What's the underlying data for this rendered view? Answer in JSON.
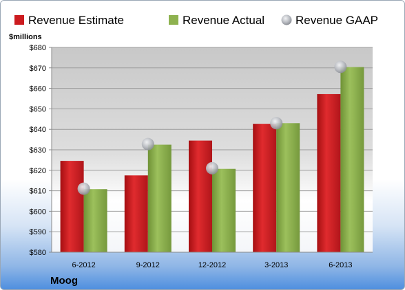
{
  "chart_data": {
    "type": "bar",
    "title": "",
    "ylabel": "$millions",
    "company": "Moog",
    "categories": [
      "6-2012",
      "9-2012",
      "12-2012",
      "3-2013",
      "6-2013"
    ],
    "ylim": [
      580,
      680
    ],
    "yticks": [
      "$580",
      "$590",
      "$600",
      "$610",
      "$620",
      "$630",
      "$640",
      "$650",
      "$660",
      "$670",
      "$680"
    ],
    "legend_position": "top",
    "grid": true,
    "series": [
      {
        "name": "Revenue Estimate",
        "type": "bar",
        "color": "#cc1b1f",
        "values": [
          624.6,
          617.5,
          634.5,
          642.7,
          657.2
        ]
      },
      {
        "name": "Revenue Actual",
        "type": "bar",
        "color": "#8eb24f",
        "values": [
          610.8,
          632.5,
          620.7,
          643.0,
          670.4
        ]
      },
      {
        "name": "Revenue GAAP",
        "type": "marker",
        "color": "#c9cbd0",
        "values": [
          611.0,
          632.8,
          621.0,
          643.0,
          670.5
        ]
      }
    ]
  }
}
